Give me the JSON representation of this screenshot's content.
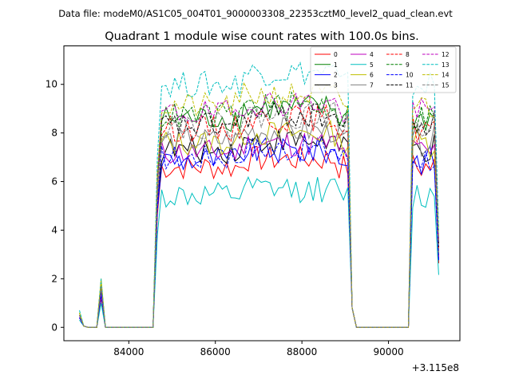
{
  "chart_data": {
    "type": "line",
    "suptitle": "Data file: modeM0/AS1C05_004T01_9000003308_22353cztM0_level2_quad_clean.evt",
    "title": "Quadrant 1 module wise count rates with 100.0s bins.",
    "xlabel": "",
    "ylabel": "",
    "x_offset_label": "+3.115e8",
    "x_offset": 311500000,
    "xlim": [
      82500,
      91650
    ],
    "ylim": [
      -0.55,
      11.6
    ],
    "x_ticks": [
      84000,
      86000,
      88000,
      90000
    ],
    "x_tick_labels": [
      "84000",
      "86000",
      "88000",
      "90000"
    ],
    "y_ticks": [
      0,
      2,
      4,
      6,
      8,
      10
    ],
    "y_tick_labels": [
      "0",
      "2",
      "4",
      "6",
      "8",
      "10"
    ],
    "grid": false,
    "legend_position": "top-right",
    "legend_columns": 4,
    "segments": [
      {
        "x_start": 82860,
        "x_end": 83460,
        "step": 100
      },
      {
        "x_start": 83560,
        "x_end": 84560,
        "step": 100
      },
      {
        "x_start": 84660,
        "x_end": 89160,
        "step": 100
      },
      {
        "x_start": 89260,
        "x_end": 90460,
        "step": 100
      },
      {
        "x_start": 90560,
        "x_end": 91160,
        "step": 100
      }
    ],
    "series": [
      {
        "name": "0",
        "color": "#ff0000",
        "dash": "solid",
        "level": 6.6,
        "early": [
          0.4,
          0.05,
          0.0,
          0.0,
          0.0,
          1.2,
          0.0
        ]
      },
      {
        "name": "1",
        "color": "#008000",
        "dash": "solid",
        "level": 8.6,
        "early": [
          0.5,
          0.05,
          0.0,
          0.0,
          0.0,
          1.9,
          0.0
        ]
      },
      {
        "name": "2",
        "color": "#0000ff",
        "dash": "solid",
        "level": 6.9,
        "early": [
          0.4,
          0.05,
          0.0,
          0.0,
          0.0,
          1.3,
          0.0
        ]
      },
      {
        "name": "3",
        "color": "#000000",
        "dash": "solid",
        "level": 7.3,
        "early": [
          0.5,
          0.05,
          0.0,
          0.0,
          0.0,
          1.5,
          0.0
        ]
      },
      {
        "name": "4",
        "color": "#bf00bf",
        "dash": "solid",
        "level": 7.2,
        "early": [
          0.4,
          0.05,
          0.0,
          0.0,
          0.0,
          1.4,
          0.0
        ]
      },
      {
        "name": "5",
        "color": "#00bfbf",
        "dash": "solid",
        "level": 5.4,
        "early": [
          0.3,
          0.05,
          0.0,
          0.0,
          0.0,
          1.0,
          0.0
        ]
      },
      {
        "name": "6",
        "color": "#bfbf00",
        "dash": "solid",
        "level": 7.6,
        "early": [
          0.6,
          0.05,
          0.0,
          0.0,
          0.0,
          2.0,
          0.0
        ]
      },
      {
        "name": "7",
        "color": "#808080",
        "dash": "solid",
        "level": 7.7,
        "early": [
          0.5,
          0.05,
          0.0,
          0.0,
          0.0,
          1.6,
          0.0
        ]
      },
      {
        "name": "8",
        "color": "#ff0000",
        "dash": "dashed",
        "level": 8.2,
        "early": [
          0.5,
          0.05,
          0.0,
          0.0,
          0.0,
          1.7,
          0.0
        ]
      },
      {
        "name": "9",
        "color": "#008000",
        "dash": "dashed",
        "level": 8.7,
        "early": [
          0.6,
          0.05,
          0.0,
          0.0,
          0.0,
          1.8,
          0.0
        ]
      },
      {
        "name": "10",
        "color": "#0000ff",
        "dash": "dashed",
        "level": 7.0,
        "early": [
          0.4,
          0.05,
          0.0,
          0.0,
          0.0,
          1.4,
          0.0
        ]
      },
      {
        "name": "11",
        "color": "#000000",
        "dash": "dashed",
        "level": 8.3,
        "early": [
          0.5,
          0.05,
          0.0,
          0.0,
          0.0,
          1.7,
          0.0
        ]
      },
      {
        "name": "12",
        "color": "#bf00bf",
        "dash": "dashed",
        "level": 8.8,
        "early": [
          0.5,
          0.05,
          0.0,
          0.0,
          0.0,
          1.8,
          0.0
        ]
      },
      {
        "name": "13",
        "color": "#00bfbf",
        "dash": "dashed",
        "level": 10.0,
        "early": [
          0.7,
          0.05,
          0.0,
          0.0,
          0.0,
          2.0,
          0.0
        ]
      },
      {
        "name": "14",
        "color": "#bfbf00",
        "dash": "dashed",
        "level": 9.1,
        "early": [
          0.6,
          0.05,
          0.0,
          0.0,
          0.0,
          1.9,
          0.0
        ]
      },
      {
        "name": "15",
        "color": "#808080",
        "dash": "dashed",
        "level": 8.3,
        "early": [
          0.5,
          0.05,
          0.0,
          0.0,
          0.0,
          1.7,
          0.0
        ]
      }
    ]
  }
}
